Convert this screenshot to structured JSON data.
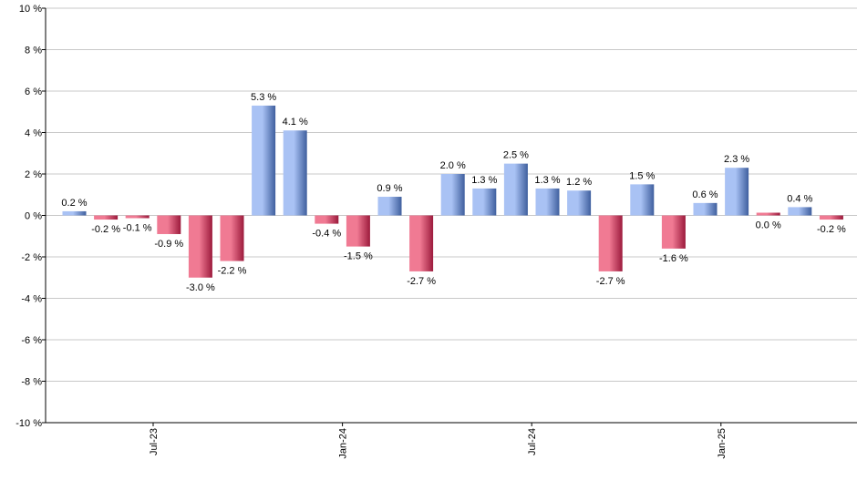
{
  "chart_data": {
    "type": "bar",
    "title": "",
    "xlabel": "",
    "ylabel": "",
    "ylim": [
      -10,
      10
    ],
    "y_ticks": [
      10,
      8,
      6,
      4,
      2,
      0,
      -2,
      -4,
      -6,
      -8,
      -10
    ],
    "y_tick_labels": [
      "10 %",
      "8 %",
      "6 %",
      "4 %",
      "2 %",
      "0 %",
      "-2 %",
      "-4 %",
      "-6 %",
      "-8 %",
      "-10 %"
    ],
    "grid": true,
    "x_tick_labels": [
      {
        "label": "Jul-23",
        "after_bar": 2
      },
      {
        "label": "Jan-24",
        "after_bar": 8
      },
      {
        "label": "Jul-24",
        "after_bar": 14
      },
      {
        "label": "Jan-25",
        "after_bar": 20
      }
    ],
    "values": [
      0.2,
      -0.2,
      -0.1,
      -0.9,
      -3.0,
      -2.2,
      5.3,
      4.1,
      -0.4,
      -1.5,
      0.9,
      -2.7,
      2.0,
      1.3,
      2.5,
      1.3,
      1.2,
      -2.7,
      1.5,
      -1.6,
      0.6,
      2.3,
      0.0,
      0.4,
      -0.2
    ],
    "labels": [
      "0.2 %",
      "-0.2 %",
      "-0.1 %",
      "-0.9 %",
      "-3.0 %",
      "-2.2 %",
      "5.3 %",
      "4.1 %",
      "-0.4 %",
      "-1.5 %",
      "0.9 %",
      "-2.7 %",
      "2.0 %",
      "1.3 %",
      "2.5 %",
      "1.3 %",
      "1.2 %",
      "-2.7 %",
      "1.5 %",
      "-1.6 %",
      "0.6 %",
      "2.3 %",
      "0.0 %",
      "0.4 %",
      "-0.2 %"
    ],
    "colors": {
      "positive_light": "#a9c2f4",
      "positive_dark": "#3f5f9e",
      "negative_light": "#f07a93",
      "negative_dark": "#9c1a3c",
      "grid": "#c8c8c8",
      "axis": "#000000"
    }
  }
}
